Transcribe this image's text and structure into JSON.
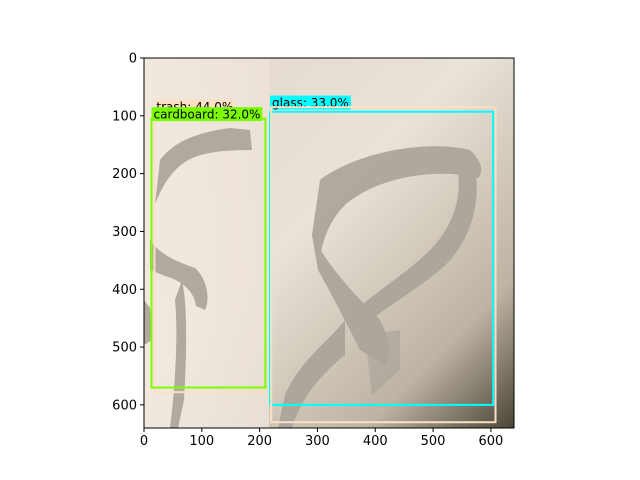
{
  "chart_data": {
    "type": "image-with-detections",
    "image_size": [
      640,
      640
    ],
    "xlim": [
      0,
      640
    ],
    "ylim": [
      640,
      0
    ],
    "x_ticks": [
      "0",
      "100",
      "200",
      "300",
      "400",
      "500",
      "600"
    ],
    "y_ticks": [
      "0",
      "100",
      "200",
      "300",
      "400",
      "500",
      "600"
    ],
    "detections": [
      {
        "label": "trash: 44.0%",
        "x0": 18,
        "y0": 95,
        "x1": 210,
        "y1": 578,
        "color": "#fbe0c4",
        "text_x": 18,
        "text_y": 72
      },
      {
        "label": "cardboard: 32.0%",
        "x0": 13,
        "y0": 105,
        "x1": 210,
        "y1": 570,
        "color": "#7cfc00",
        "text_x": 13,
        "text_y": 85
      },
      {
        "label": "glass: 33.0%",
        "x0": 218,
        "y0": 93,
        "x1": 604,
        "y1": 600,
        "color": "#00ffff",
        "text_x": 218,
        "text_y": 65
      },
      {
        "label": "",
        "x0": 220,
        "y0": 85,
        "x1": 608,
        "y1": 630,
        "color": "#fbe0c4",
        "text_x": null,
        "text_y": null
      }
    ]
  }
}
